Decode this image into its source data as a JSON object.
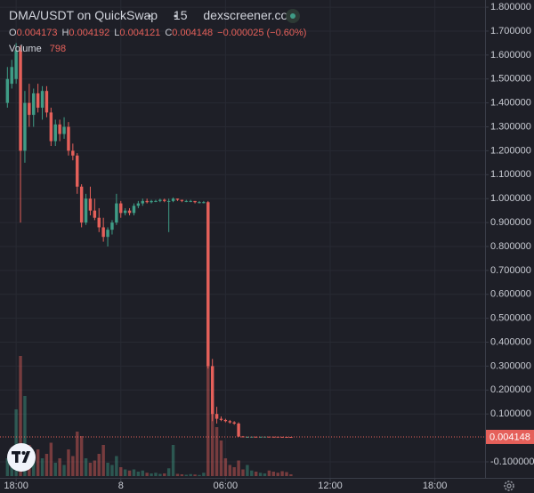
{
  "chart_data": {
    "type": "candlestick",
    "title": "DMA/USDT on QuickSwap",
    "interval": "15",
    "source": "dexscreener.com",
    "ohlc_legend": [
      {
        "label": "O",
        "value": "0.004173"
      },
      {
        "label": "H",
        "value": "0.004192"
      },
      {
        "label": "L",
        "value": "0.004121"
      },
      {
        "label": "C",
        "value": "0.004148"
      }
    ],
    "change": "−0.000025 (−0.60%)",
    "volume_label": "Volume",
    "up_color": "#3f9c86",
    "down_color": "#e5605a",
    "grid": true,
    "x": [
      -2,
      -1,
      0,
      1,
      2,
      3,
      4,
      5,
      6,
      7,
      8,
      9,
      10,
      11,
      12,
      13,
      14,
      15,
      16,
      17,
      18,
      19,
      20,
      21,
      22,
      23,
      24,
      25,
      26,
      27,
      28,
      29,
      30,
      31,
      32,
      33,
      34,
      35,
      36,
      37,
      38,
      39,
      40,
      41,
      42,
      43,
      44,
      45,
      46,
      47,
      48,
      49,
      50,
      51,
      52,
      53,
      54,
      55,
      56,
      57,
      58,
      59,
      60,
      61,
      62,
      63
    ],
    "open": [
      1.4,
      1.48,
      1.5,
      1.62,
      1.2,
      1.4,
      1.35,
      1.44,
      1.38,
      1.45,
      1.36,
      1.24,
      1.31,
      1.27,
      1.3,
      1.2,
      1.18,
      1.05,
      0.9,
      1.0,
      0.95,
      0.92,
      0.88,
      0.84,
      0.87,
      0.9,
      0.98,
      0.94,
      0.95,
      0.94,
      0.97,
      0.98,
      0.99,
      0.985,
      0.99,
      0.99,
      0.995,
      0.99,
      0.99,
      1.0,
      0.995,
      0.99,
      0.99,
      0.99,
      0.985,
      0.985,
      0.985,
      0.3,
      0.1,
      0.08,
      0.075,
      0.07,
      0.065,
      0.06,
      0.006,
      0.004,
      0.0045,
      0.005,
      0.0046,
      0.0048,
      0.0052,
      0.005,
      0.0049,
      0.0045,
      0.0043,
      0.004173
    ],
    "high": [
      1.55,
      1.58,
      1.65,
      1.64,
      1.45,
      1.48,
      1.46,
      1.48,
      1.47,
      1.47,
      1.38,
      1.33,
      1.33,
      1.34,
      1.32,
      1.23,
      1.19,
      1.06,
      1.02,
      1.05,
      1.0,
      0.96,
      0.92,
      0.88,
      0.91,
      1.02,
      0.99,
      0.96,
      0.96,
      0.98,
      0.99,
      1.0,
      1.0,
      0.995,
      0.995,
      1.0,
      1.0,
      1.0,
      1.005,
      1.0,
      0.995,
      0.995,
      0.995,
      0.99,
      0.99,
      0.99,
      0.99,
      0.33,
      0.13,
      0.09,
      0.08,
      0.075,
      0.07,
      0.065,
      0.008,
      0.006,
      0.006,
      0.0055,
      0.0052,
      0.0056,
      0.0054,
      0.0052,
      0.005,
      0.0047,
      0.0045,
      0.004192
    ],
    "low": [
      1.38,
      1.46,
      1.48,
      0.9,
      1.15,
      1.3,
      1.3,
      1.36,
      1.33,
      1.34,
      1.22,
      1.22,
      1.24,
      1.25,
      1.18,
      1.16,
      1.02,
      0.88,
      0.89,
      0.93,
      0.91,
      0.86,
      0.82,
      0.8,
      0.85,
      0.89,
      0.92,
      0.93,
      0.93,
      0.93,
      0.96,
      0.97,
      0.98,
      0.98,
      0.985,
      0.985,
      0.985,
      0.86,
      0.985,
      0.99,
      0.985,
      0.985,
      0.985,
      0.98,
      0.98,
      0.98,
      0.29,
      0.07,
      0.06,
      0.07,
      0.065,
      0.06,
      0.055,
      0.004,
      0.0035,
      0.0038,
      0.0042,
      0.0044,
      0.0045,
      0.0046,
      0.0047,
      0.0046,
      0.0043,
      0.0042,
      0.0041,
      0.004121
    ],
    "close": [
      1.5,
      1.55,
      1.62,
      1.2,
      1.4,
      1.35,
      1.44,
      1.38,
      1.45,
      1.36,
      1.24,
      1.31,
      1.27,
      1.3,
      1.2,
      1.18,
      1.05,
      0.9,
      1.0,
      0.95,
      0.92,
      0.88,
      0.84,
      0.87,
      0.9,
      0.98,
      0.94,
      0.95,
      0.94,
      0.97,
      0.98,
      0.99,
      0.985,
      0.99,
      0.99,
      0.995,
      0.99,
      0.99,
      1.0,
      0.995,
      0.99,
      0.99,
      0.99,
      0.985,
      0.985,
      0.985,
      0.3,
      0.1,
      0.08,
      0.075,
      0.07,
      0.065,
      0.06,
      0.006,
      0.004,
      0.0045,
      0.005,
      0.0046,
      0.0048,
      0.0052,
      0.005,
      0.0049,
      0.0045,
      0.0043,
      0.004173,
      0.004148
    ],
    "volume": [
      8000,
      12000,
      30000,
      54000,
      36000,
      14000,
      9000,
      12000,
      8000,
      10000,
      15000,
      6000,
      8000,
      5000,
      12000,
      9000,
      20000,
      18000,
      8000,
      6000,
      7000,
      10000,
      14000,
      6000,
      5000,
      9000,
      4000,
      3000,
      2500,
      3000,
      2000,
      2500,
      1500,
      1200,
      1500,
      1000,
      1200,
      3500,
      14000,
      1000,
      800,
      600,
      900,
      700,
      500,
      1500,
      50000,
      36000,
      22000,
      16000,
      8000,
      5000,
      4000,
      7000,
      3000,
      5000,
      2500,
      2000,
      1500,
      1200,
      2500,
      2000,
      1500,
      2200,
      1800,
      798
    ],
    "last_price": 0.004148,
    "xlim": [
      -3.7,
      107.5
    ],
    "xticks": [
      {
        "value": 0,
        "label": "18:00"
      },
      {
        "value": 24,
        "label": "8"
      },
      {
        "value": 48,
        "label": "06:00"
      },
      {
        "value": 72,
        "label": "12:00"
      },
      {
        "value": 96,
        "label": "18:00"
      }
    ],
    "ylim": [
      -0.167,
      1.83
    ],
    "yticks": [
      {
        "value": 1.8,
        "label": "1.800000"
      },
      {
        "value": 1.7,
        "label": "1.700000"
      },
      {
        "value": 1.6,
        "label": "1.600000"
      },
      {
        "value": 1.5,
        "label": "1.500000"
      },
      {
        "value": 1.4,
        "label": "1.400000"
      },
      {
        "value": 1.3,
        "label": "1.300000"
      },
      {
        "value": 1.2,
        "label": "1.200000"
      },
      {
        "value": 1.1,
        "label": "1.100000"
      },
      {
        "value": 1.0,
        "label": "1.000000"
      },
      {
        "value": 0.9,
        "label": "0.900000"
      },
      {
        "value": 0.8,
        "label": "0.800000"
      },
      {
        "value": 0.7,
        "label": "0.700000"
      },
      {
        "value": 0.6,
        "label": "0.600000"
      },
      {
        "value": 0.5,
        "label": "0.500000"
      },
      {
        "value": 0.4,
        "label": "0.400000"
      },
      {
        "value": 0.3,
        "label": "0.300000"
      },
      {
        "value": 0.2,
        "label": "0.200000"
      },
      {
        "value": 0.1,
        "label": "0.100000"
      },
      {
        "value": -0.1,
        "label": "-0.100000"
      }
    ]
  }
}
